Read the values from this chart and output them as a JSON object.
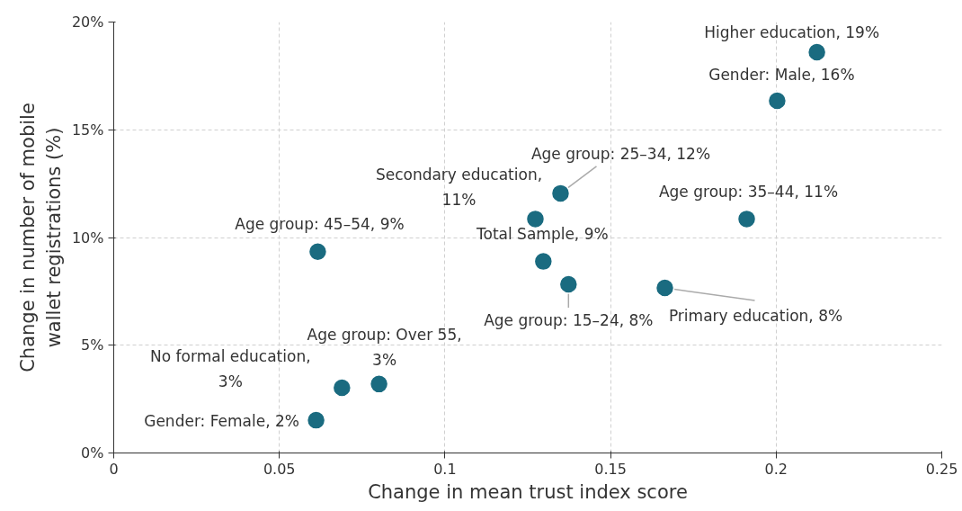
{
  "chart_data": {
    "type": "scatter",
    "xlabel": "Change in mean trust index score",
    "ylabel": "Change in number of mobile wallet registrations (%)",
    "x": [
      0.2123,
      0.2003,
      0.1349,
      0.1273,
      0.1911,
      0.0616,
      0.1297,
      0.1373,
      0.1664,
      0.0801,
      0.0689,
      0.0611
    ],
    "series": [
      {
        "color": "#1a6b80",
        "values": [
          18.6,
          16.35,
          12.05,
          10.86,
          10.86,
          9.34,
          8.89,
          7.83,
          7.66,
          3.2,
          3.03,
          1.52
        ]
      }
    ],
    "xlim": [
      0,
      0.25
    ],
    "ylim": [
      0,
      20
    ],
    "xticks": [
      0,
      0.05,
      0.1,
      0.15,
      0.2,
      0.25
    ],
    "yticks": [
      {
        "value": 0,
        "label": "0%"
      },
      {
        "value": 5,
        "label": "5%"
      },
      {
        "value": 10,
        "label": "10%"
      },
      {
        "value": 15,
        "label": "15%"
      },
      {
        "value": 20,
        "label": "20%"
      }
    ],
    "grid": true,
    "marker": "circle",
    "annotations": [
      {
        "text": "Higher education, 19%",
        "x": 0.2123,
        "y": 18.6
      },
      {
        "text": "Gender: Male, 16%",
        "x": 0.2003,
        "y": 16.35
      },
      {
        "text": "Age group: 25–34, 12%",
        "x": 0.1349,
        "y": 12.05
      },
      {
        "text": "Secondary education, 11%",
        "x": 0.1273,
        "y": 10.86
      },
      {
        "text": "Age group: 35–44, 11%",
        "x": 0.1911,
        "y": 10.86
      },
      {
        "text": "Age group: 45–54, 9%",
        "x": 0.0616,
        "y": 9.34
      },
      {
        "text": "Total Sample, 9%",
        "x": 0.1297,
        "y": 8.89
      },
      {
        "text": "Age group: 15–24, 8%",
        "x": 0.1373,
        "y": 7.83
      },
      {
        "text": "Primary education, 8%",
        "x": 0.1664,
        "y": 7.66
      },
      {
        "text": "Age group: Over 55, 3%",
        "x": 0.0801,
        "y": 3.2
      },
      {
        "text": "No formal education, 3%",
        "x": 0.0689,
        "y": 3.03
      },
      {
        "text": "Gender: Female, 2%",
        "x": 0.0611,
        "y": 1.52
      }
    ]
  }
}
